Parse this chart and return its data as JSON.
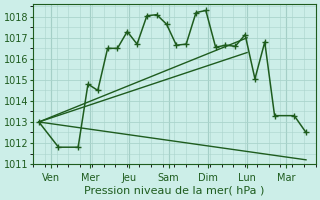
{
  "bg_color": "#cceee8",
  "grid_color": "#aad4cc",
  "line_color": "#1e5c1e",
  "xlabel": "Pression niveau de la mer( hPa )",
  "xlabel_fontsize": 8,
  "tick_fontsize": 7,
  "ylim": [
    1011,
    1018.6
  ],
  "yticks": [
    1011,
    1012,
    1013,
    1014,
    1015,
    1016,
    1017,
    1018
  ],
  "xlim": [
    -0.15,
    7.0
  ],
  "x_tick_positions": [
    0.3,
    1.3,
    2.3,
    3.3,
    4.3,
    5.3,
    6.3
  ],
  "x_labels": [
    "Ven",
    "Mer",
    "Jeu",
    "Sam",
    "Dim",
    "Lun",
    "Mar"
  ],
  "line_main": {
    "x": [
      0.0,
      0.5,
      1.0,
      1.25,
      1.5,
      1.75,
      2.0,
      2.25,
      2.5,
      2.75,
      3.0,
      3.25,
      3.5,
      3.75,
      4.0,
      4.25,
      4.5,
      4.75,
      5.0,
      5.25,
      5.5,
      5.75,
      6.0,
      6.5,
      6.8
    ],
    "y": [
      1013.0,
      1011.8,
      1011.8,
      1014.8,
      1014.5,
      1016.5,
      1016.5,
      1017.3,
      1016.7,
      1018.05,
      1018.1,
      1017.65,
      1016.65,
      1016.7,
      1018.2,
      1018.3,
      1016.55,
      1016.65,
      1016.6,
      1017.15,
      1015.05,
      1016.8,
      1013.3,
      1013.3,
      1012.5
    ]
  },
  "diag1": {
    "x": [
      0.0,
      5.3
    ],
    "y": [
      1013.0,
      1017.0
    ]
  },
  "diag2": {
    "x": [
      0.0,
      5.3
    ],
    "y": [
      1013.0,
      1016.3
    ]
  },
  "diag3": {
    "x": [
      0.0,
      6.8
    ],
    "y": [
      1013.0,
      1011.2
    ]
  }
}
